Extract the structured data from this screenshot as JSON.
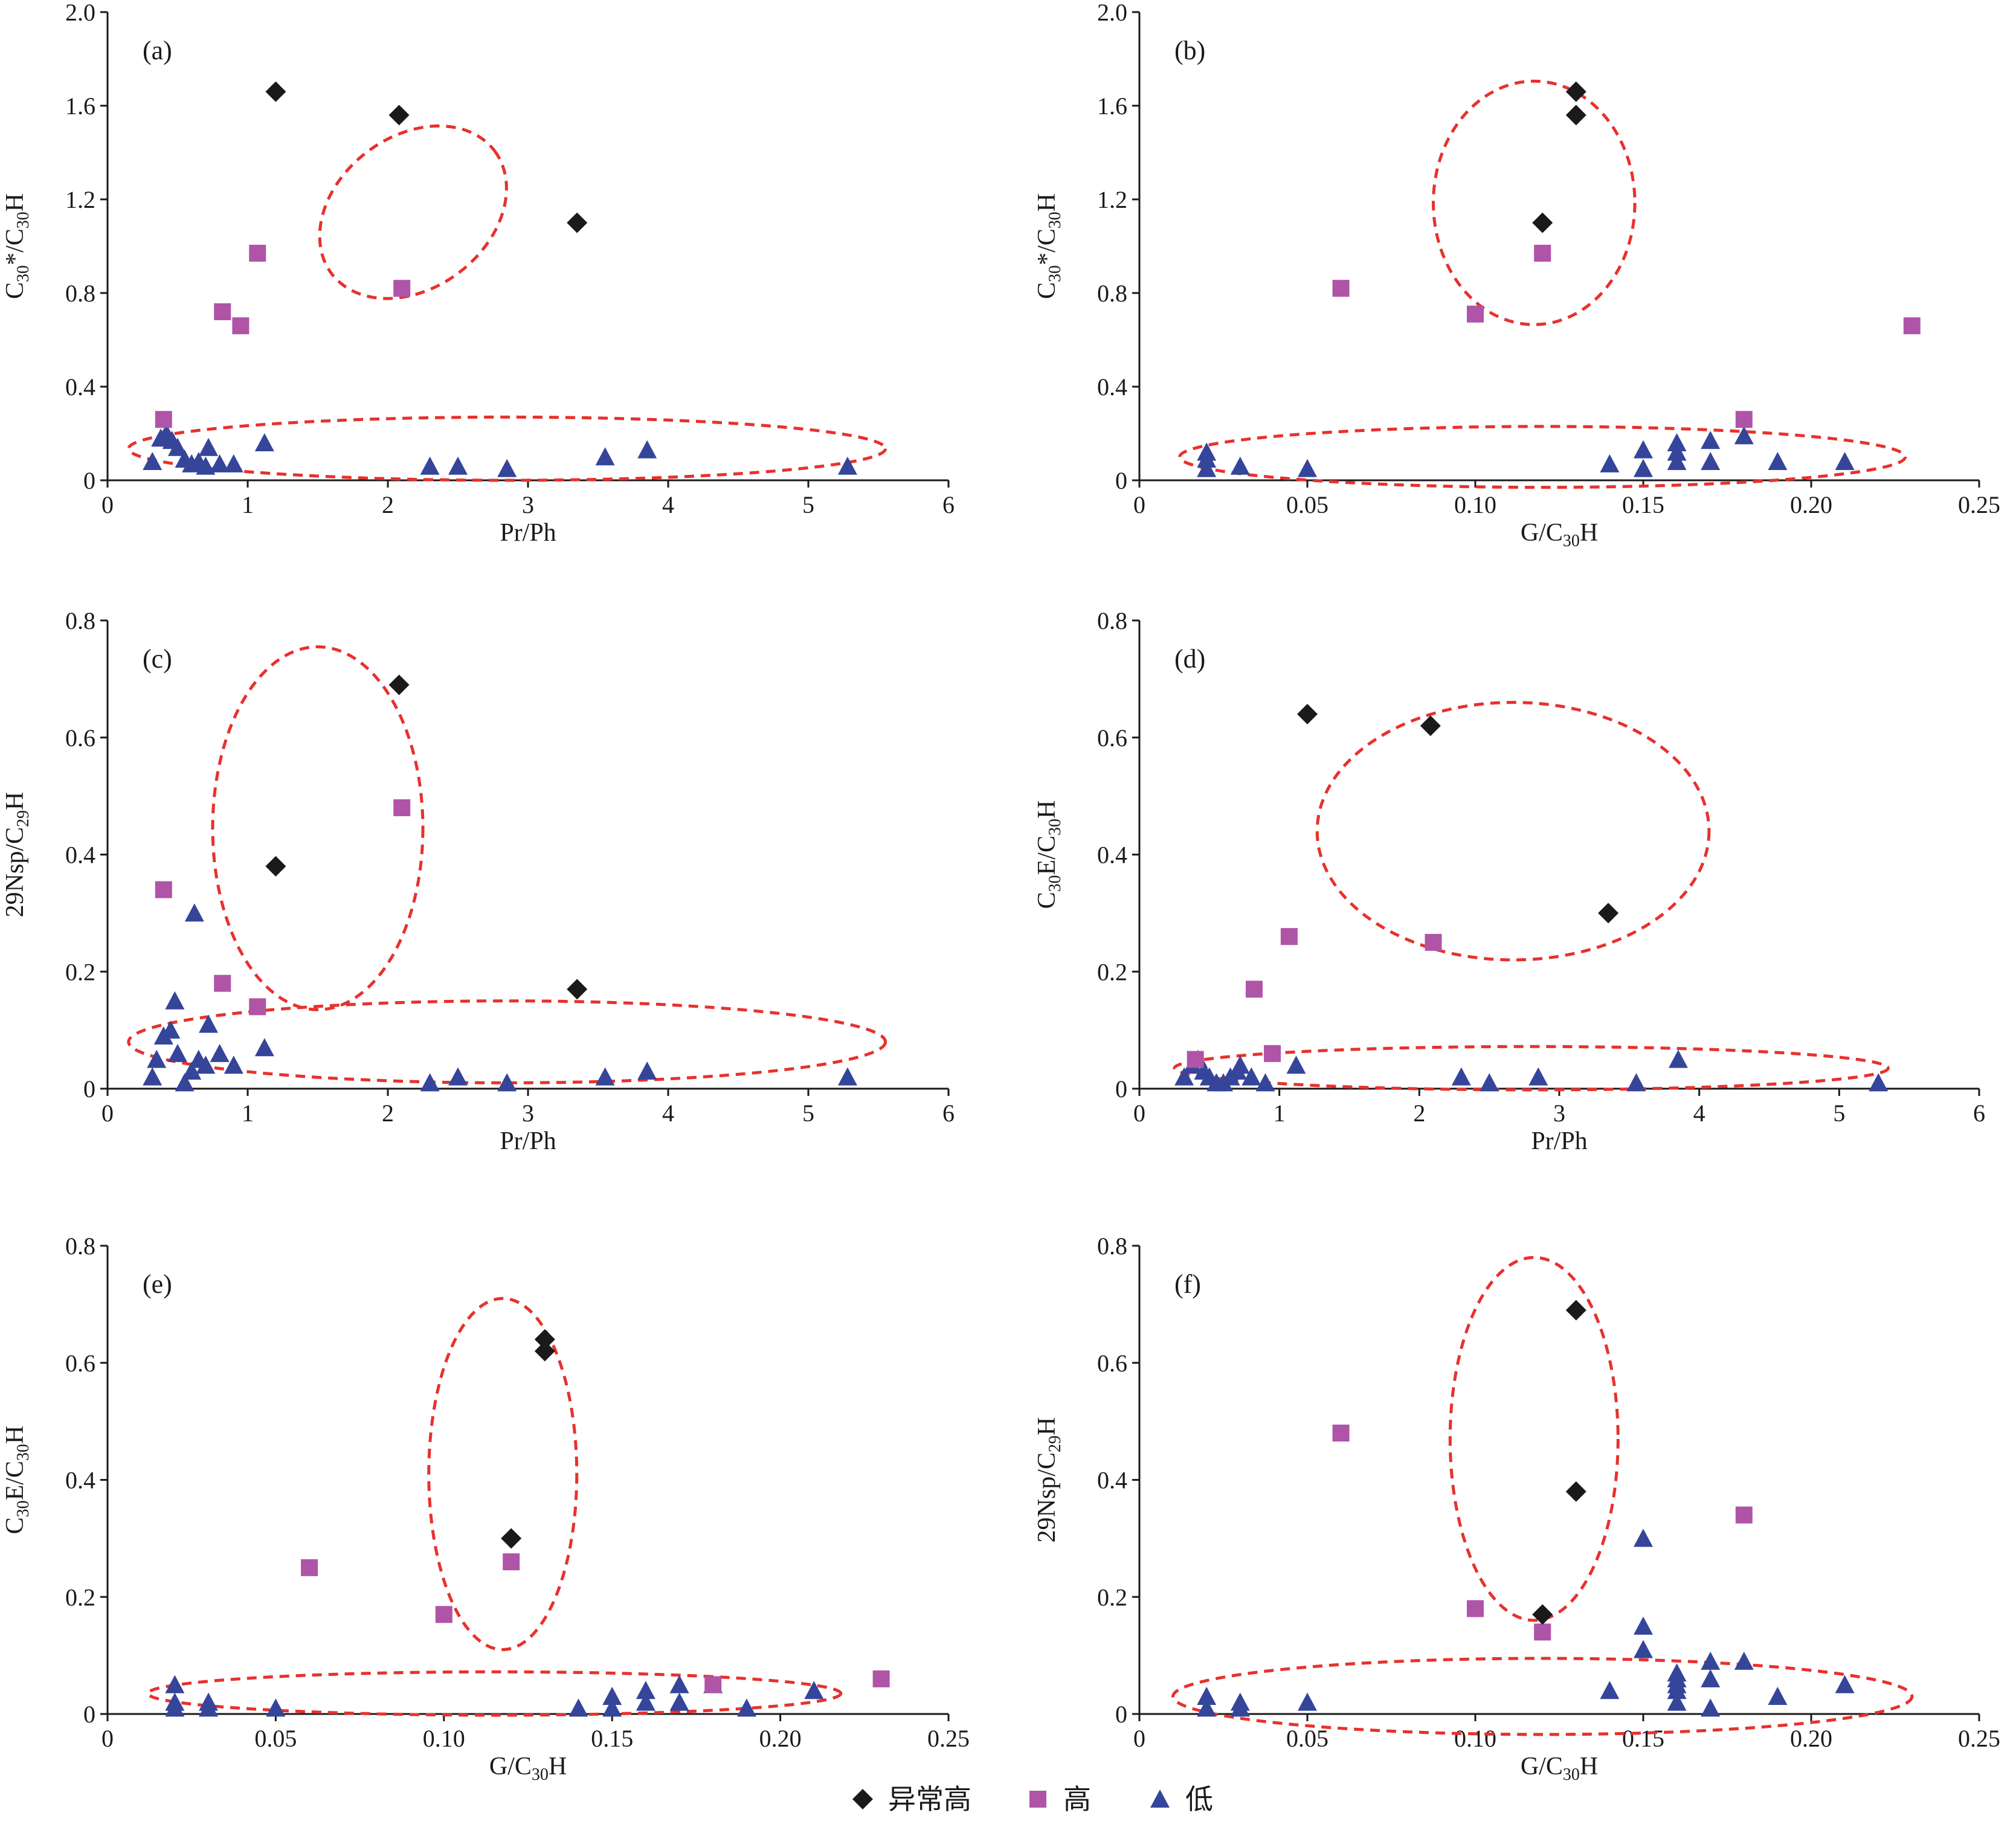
{
  "legend": [
    {
      "key": "abnormal_high",
      "label": "异常高",
      "marker": "diamond",
      "color": "#1a1a1a"
    },
    {
      "key": "high",
      "label": "高",
      "marker": "square",
      "color": "#b054a8"
    },
    {
      "key": "low",
      "label": "低",
      "marker": "triangle",
      "color": "#35459a"
    }
  ],
  "ellipse_color": "#e8312c",
  "chart_data": [
    {
      "type": "scatter",
      "panel_label": "(a)",
      "xlabel": "Pr/Ph",
      "ylabel": [
        {
          "t": "C"
        },
        {
          "t": "30",
          "sub": true
        },
        {
          "t": "*/C"
        },
        {
          "t": "30",
          "sub": true
        },
        {
          "t": "H"
        }
      ],
      "xlim": [
        0,
        6
      ],
      "ylim": [
        0,
        2.0
      ],
      "xticks": [
        "0",
        "1",
        "2",
        "3",
        "4",
        "5",
        "6"
      ],
      "yticks": [
        "0",
        "0.4",
        "0.8",
        "1.2",
        "1.6",
        "2.0"
      ],
      "series": {
        "abnormal_high": [
          [
            1.2,
            1.66
          ],
          [
            2.08,
            1.56
          ],
          [
            3.35,
            1.1
          ]
        ],
        "high": [
          [
            0.4,
            0.26
          ],
          [
            0.82,
            0.72
          ],
          [
            0.95,
            0.66
          ],
          [
            1.07,
            0.97
          ],
          [
            2.1,
            0.82
          ]
        ],
        "low": [
          [
            0.32,
            0.08
          ],
          [
            0.38,
            0.18
          ],
          [
            0.42,
            0.2
          ],
          [
            0.46,
            0.17
          ],
          [
            0.5,
            0.14
          ],
          [
            0.55,
            0.09
          ],
          [
            0.6,
            0.07
          ],
          [
            0.65,
            0.08
          ],
          [
            0.7,
            0.06
          ],
          [
            0.72,
            0.14
          ],
          [
            0.8,
            0.07
          ],
          [
            0.9,
            0.07
          ],
          [
            1.12,
            0.16
          ],
          [
            2.3,
            0.06
          ],
          [
            2.5,
            0.06
          ],
          [
            2.85,
            0.05
          ],
          [
            3.55,
            0.1
          ],
          [
            3.85,
            0.13
          ],
          [
            5.28,
            0.06
          ]
        ]
      },
      "ellipses": [
        {
          "cx": 2.18,
          "cy": 1.145,
          "rx": 1.4,
          "ry": 0.36,
          "rot": -37
        },
        {
          "cx": 2.85,
          "cy": 0.135,
          "rx": 2.7,
          "ry": 0.135,
          "rot": 0
        }
      ]
    },
    {
      "type": "scatter",
      "panel_label": "(b)",
      "xlabel": [
        {
          "t": "G/C"
        },
        {
          "t": "30",
          "sub": true
        },
        {
          "t": "H"
        }
      ],
      "ylabel": [
        {
          "t": "C"
        },
        {
          "t": "30",
          "sub": true
        },
        {
          "t": "*/C"
        },
        {
          "t": "30",
          "sub": true
        },
        {
          "t": "H"
        }
      ],
      "xlim": [
        0,
        0.25
      ],
      "ylim": [
        0,
        2.0
      ],
      "xticks": [
        "0",
        "0.05",
        "0.10",
        "0.15",
        "0.20",
        "0.25"
      ],
      "yticks": [
        "0",
        "0.4",
        "0.8",
        "1.2",
        "1.6",
        "2.0"
      ],
      "series": {
        "abnormal_high": [
          [
            0.13,
            1.66
          ],
          [
            0.13,
            1.56
          ],
          [
            0.12,
            1.1
          ]
        ],
        "high": [
          [
            0.06,
            0.82
          ],
          [
            0.1,
            0.71
          ],
          [
            0.12,
            0.97
          ],
          [
            0.18,
            0.26
          ],
          [
            0.23,
            0.66
          ]
        ],
        "low": [
          [
            0.02,
            0.12
          ],
          [
            0.02,
            0.09
          ],
          [
            0.02,
            0.05
          ],
          [
            0.03,
            0.06
          ],
          [
            0.05,
            0.05
          ],
          [
            0.14,
            0.07
          ],
          [
            0.15,
            0.13
          ],
          [
            0.15,
            0.05
          ],
          [
            0.16,
            0.16
          ],
          [
            0.16,
            0.12
          ],
          [
            0.16,
            0.08
          ],
          [
            0.17,
            0.17
          ],
          [
            0.17,
            0.08
          ],
          [
            0.18,
            0.19
          ],
          [
            0.19,
            0.08
          ],
          [
            0.21,
            0.08
          ]
        ]
      },
      "ellipses": [
        {
          "cx": 0.1175,
          "cy": 1.185,
          "rx": 0.03,
          "ry": 0.52,
          "rot": 0
        },
        {
          "cx": 0.12,
          "cy": 0.1,
          "rx": 0.108,
          "ry": 0.13,
          "rot": 0
        }
      ]
    },
    {
      "type": "scatter",
      "panel_label": "(c)",
      "xlabel": "Pr/Ph",
      "ylabel": [
        {
          "t": "29Nsp/C"
        },
        {
          "t": "29",
          "sub": true
        },
        {
          "t": "H"
        }
      ],
      "xlim": [
        0,
        6
      ],
      "ylim": [
        0,
        0.8
      ],
      "xticks": [
        "0",
        "1",
        "2",
        "3",
        "4",
        "5",
        "6"
      ],
      "yticks": [
        "0",
        "0.2",
        "0.4",
        "0.6",
        "0.8"
      ],
      "series": {
        "abnormal_high": [
          [
            2.08,
            0.69
          ],
          [
            1.2,
            0.38
          ],
          [
            3.35,
            0.17
          ]
        ],
        "high": [
          [
            0.4,
            0.34
          ],
          [
            0.82,
            0.18
          ],
          [
            1.07,
            0.14
          ],
          [
            2.1,
            0.48
          ]
        ],
        "low": [
          [
            0.32,
            0.02
          ],
          [
            0.35,
            0.05
          ],
          [
            0.4,
            0.09
          ],
          [
            0.45,
            0.1
          ],
          [
            0.48,
            0.15
          ],
          [
            0.5,
            0.06
          ],
          [
            0.55,
            0.01
          ],
          [
            0.6,
            0.03
          ],
          [
            0.62,
            0.3
          ],
          [
            0.65,
            0.05
          ],
          [
            0.7,
            0.04
          ],
          [
            0.72,
            0.11
          ],
          [
            0.8,
            0.06
          ],
          [
            0.9,
            0.04
          ],
          [
            1.12,
            0.07
          ],
          [
            2.3,
            0.01
          ],
          [
            2.5,
            0.02
          ],
          [
            2.85,
            0.01
          ],
          [
            3.55,
            0.02
          ],
          [
            3.85,
            0.03
          ],
          [
            5.28,
            0.02
          ]
        ]
      },
      "ellipses": [
        {
          "cx": 1.5,
          "cy": 0.445,
          "rx": 0.75,
          "ry": 0.31,
          "rot": 0
        },
        {
          "cx": 2.85,
          "cy": 0.08,
          "rx": 2.7,
          "ry": 0.07,
          "rot": 0
        }
      ]
    },
    {
      "type": "scatter",
      "panel_label": "(d)",
      "xlabel": "Pr/Ph",
      "ylabel": [
        {
          "t": "C"
        },
        {
          "t": "30",
          "sub": true
        },
        {
          "t": "E/C"
        },
        {
          "t": "30",
          "sub": true
        },
        {
          "t": "H"
        }
      ],
      "xlim": [
        0,
        6
      ],
      "ylim": [
        0,
        0.8
      ],
      "xticks": [
        "0",
        "1",
        "2",
        "3",
        "4",
        "5",
        "6"
      ],
      "yticks": [
        "0",
        "0.2",
        "0.4",
        "0.6",
        "0.8"
      ],
      "series": {
        "abnormal_high": [
          [
            1.2,
            0.64
          ],
          [
            2.08,
            0.62
          ],
          [
            3.35,
            0.3
          ]
        ],
        "high": [
          [
            0.4,
            0.05
          ],
          [
            0.82,
            0.17
          ],
          [
            0.95,
            0.06
          ],
          [
            1.07,
            0.26
          ],
          [
            2.1,
            0.25
          ]
        ],
        "low": [
          [
            0.32,
            0.02
          ],
          [
            0.38,
            0.04
          ],
          [
            0.42,
            0.05
          ],
          [
            0.46,
            0.03
          ],
          [
            0.5,
            0.02
          ],
          [
            0.55,
            0.01
          ],
          [
            0.6,
            0.01
          ],
          [
            0.65,
            0.02
          ],
          [
            0.7,
            0.03
          ],
          [
            0.72,
            0.04
          ],
          [
            0.8,
            0.02
          ],
          [
            0.9,
            0.01
          ],
          [
            1.12,
            0.04
          ],
          [
            2.3,
            0.02
          ],
          [
            2.5,
            0.01
          ],
          [
            2.85,
            0.02
          ],
          [
            3.55,
            0.01
          ],
          [
            3.85,
            0.05
          ],
          [
            5.28,
            0.01
          ]
        ]
      },
      "ellipses": [
        {
          "cx": 2.67,
          "cy": 0.44,
          "rx": 1.4,
          "ry": 0.22,
          "rot": 0
        },
        {
          "cx": 2.8,
          "cy": 0.035,
          "rx": 2.55,
          "ry": 0.037,
          "rot": 0
        }
      ]
    },
    {
      "type": "scatter",
      "panel_label": "(e)",
      "xlabel": [
        {
          "t": "G/C"
        },
        {
          "t": "30",
          "sub": true
        },
        {
          "t": "H"
        }
      ],
      "ylabel": [
        {
          "t": "C"
        },
        {
          "t": "30",
          "sub": true
        },
        {
          "t": "E/C"
        },
        {
          "t": "30",
          "sub": true
        },
        {
          "t": "H"
        }
      ],
      "xlim": [
        0,
        0.25
      ],
      "ylim": [
        0,
        0.8
      ],
      "xticks": [
        "0",
        "0.05",
        "0.10",
        "0.15",
        "0.20",
        "0.25"
      ],
      "yticks": [
        "0",
        "0.2",
        "0.4",
        "0.6",
        "0.8"
      ],
      "series": {
        "abnormal_high": [
          [
            0.13,
            0.64
          ],
          [
            0.13,
            0.62
          ],
          [
            0.12,
            0.3
          ]
        ],
        "high": [
          [
            0.06,
            0.25
          ],
          [
            0.1,
            0.17
          ],
          [
            0.12,
            0.26
          ],
          [
            0.18,
            0.05
          ],
          [
            0.23,
            0.06
          ]
        ],
        "low": [
          [
            0.02,
            0.05
          ],
          [
            0.02,
            0.02
          ],
          [
            0.02,
            0.01
          ],
          [
            0.03,
            0.02
          ],
          [
            0.03,
            0.01
          ],
          [
            0.05,
            0.01
          ],
          [
            0.14,
            0.01
          ],
          [
            0.15,
            0.03
          ],
          [
            0.15,
            0.01
          ],
          [
            0.16,
            0.04
          ],
          [
            0.16,
            0.02
          ],
          [
            0.17,
            0.05
          ],
          [
            0.17,
            0.02
          ],
          [
            0.18,
            0.05
          ],
          [
            0.19,
            0.01
          ],
          [
            0.21,
            0.04
          ]
        ]
      },
      "ellipses": [
        {
          "cx": 0.1175,
          "cy": 0.41,
          "rx": 0.022,
          "ry": 0.3,
          "rot": 0
        },
        {
          "cx": 0.115,
          "cy": 0.035,
          "rx": 0.103,
          "ry": 0.037,
          "rot": 0
        }
      ]
    },
    {
      "type": "scatter",
      "panel_label": "(f)",
      "xlabel": [
        {
          "t": "G/C"
        },
        {
          "t": "30",
          "sub": true
        },
        {
          "t": "H"
        }
      ],
      "ylabel": [
        {
          "t": "29Nsp/C"
        },
        {
          "t": "29",
          "sub": true
        },
        {
          "t": "H"
        }
      ],
      "xlim": [
        0,
        0.25
      ],
      "ylim": [
        0,
        0.8
      ],
      "xticks": [
        "0",
        "0.05",
        "0.10",
        "0.15",
        "0.20",
        "0.25"
      ],
      "yticks": [
        "0",
        "0.2",
        "0.4",
        "0.6",
        "0.8"
      ],
      "series": {
        "abnormal_high": [
          [
            0.13,
            0.69
          ],
          [
            0.13,
            0.38
          ],
          [
            0.12,
            0.17
          ]
        ],
        "high": [
          [
            0.06,
            0.48
          ],
          [
            0.1,
            0.18
          ],
          [
            0.12,
            0.14
          ],
          [
            0.18,
            0.34
          ]
        ],
        "low": [
          [
            0.02,
            0.03
          ],
          [
            0.02,
            0.01
          ],
          [
            0.03,
            0.02
          ],
          [
            0.03,
            0.01
          ],
          [
            0.05,
            0.02
          ],
          [
            0.14,
            0.04
          ],
          [
            0.15,
            0.3
          ],
          [
            0.15,
            0.15
          ],
          [
            0.15,
            0.11
          ],
          [
            0.16,
            0.07
          ],
          [
            0.16,
            0.06
          ],
          [
            0.16,
            0.05
          ],
          [
            0.16,
            0.04
          ],
          [
            0.16,
            0.02
          ],
          [
            0.17,
            0.09
          ],
          [
            0.17,
            0.06
          ],
          [
            0.17,
            0.01
          ],
          [
            0.18,
            0.09
          ],
          [
            0.19,
            0.03
          ],
          [
            0.21,
            0.05
          ]
        ]
      },
      "ellipses": [
        {
          "cx": 0.1175,
          "cy": 0.47,
          "rx": 0.025,
          "ry": 0.31,
          "rot": 0
        },
        {
          "cx": 0.12,
          "cy": 0.03,
          "rx": 0.11,
          "ry": 0.065,
          "rot": 0
        }
      ]
    }
  ]
}
